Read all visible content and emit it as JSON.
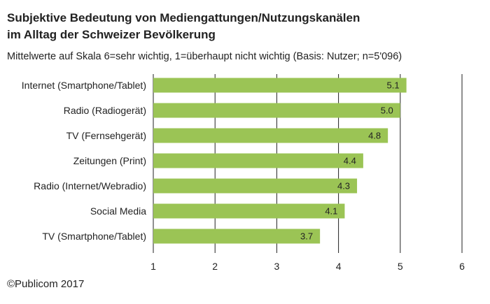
{
  "title_lines": [
    "Subjektive Bedeutung von Mediengattungen/Nutzungskanälen",
    "im Alltag der Schweizer Bevölkerung"
  ],
  "subtitle": "Mittelwerte auf Skala 6=sehr wichtig, 1=überhaupt nicht wichtig (Basis: Nutzer; n=5'096)",
  "footer": "©Publicom 2017",
  "chart_data": {
    "type": "bar",
    "orientation": "horizontal",
    "categories": [
      "Internet (Smartphone/Tablet)",
      "Radio (Radiogerät)",
      "TV (Fernsehgerät)",
      "Zeitungen (Print)",
      "Radio (Internet/Webradio)",
      "Social Media",
      "TV (Smartphone/Tablet)"
    ],
    "values": [
      5.1,
      5.0,
      4.8,
      4.4,
      4.3,
      4.1,
      3.7
    ],
    "value_labels": [
      "5.1",
      "5.0",
      "4.8",
      "4.4",
      "4.3",
      "4.1",
      "3.7"
    ],
    "xlim": [
      1,
      6
    ],
    "xticks": [
      "1",
      "2",
      "3",
      "4",
      "5",
      "6"
    ],
    "bar_color": "#9bc455",
    "grid": true,
    "grid_color": "#222222"
  }
}
